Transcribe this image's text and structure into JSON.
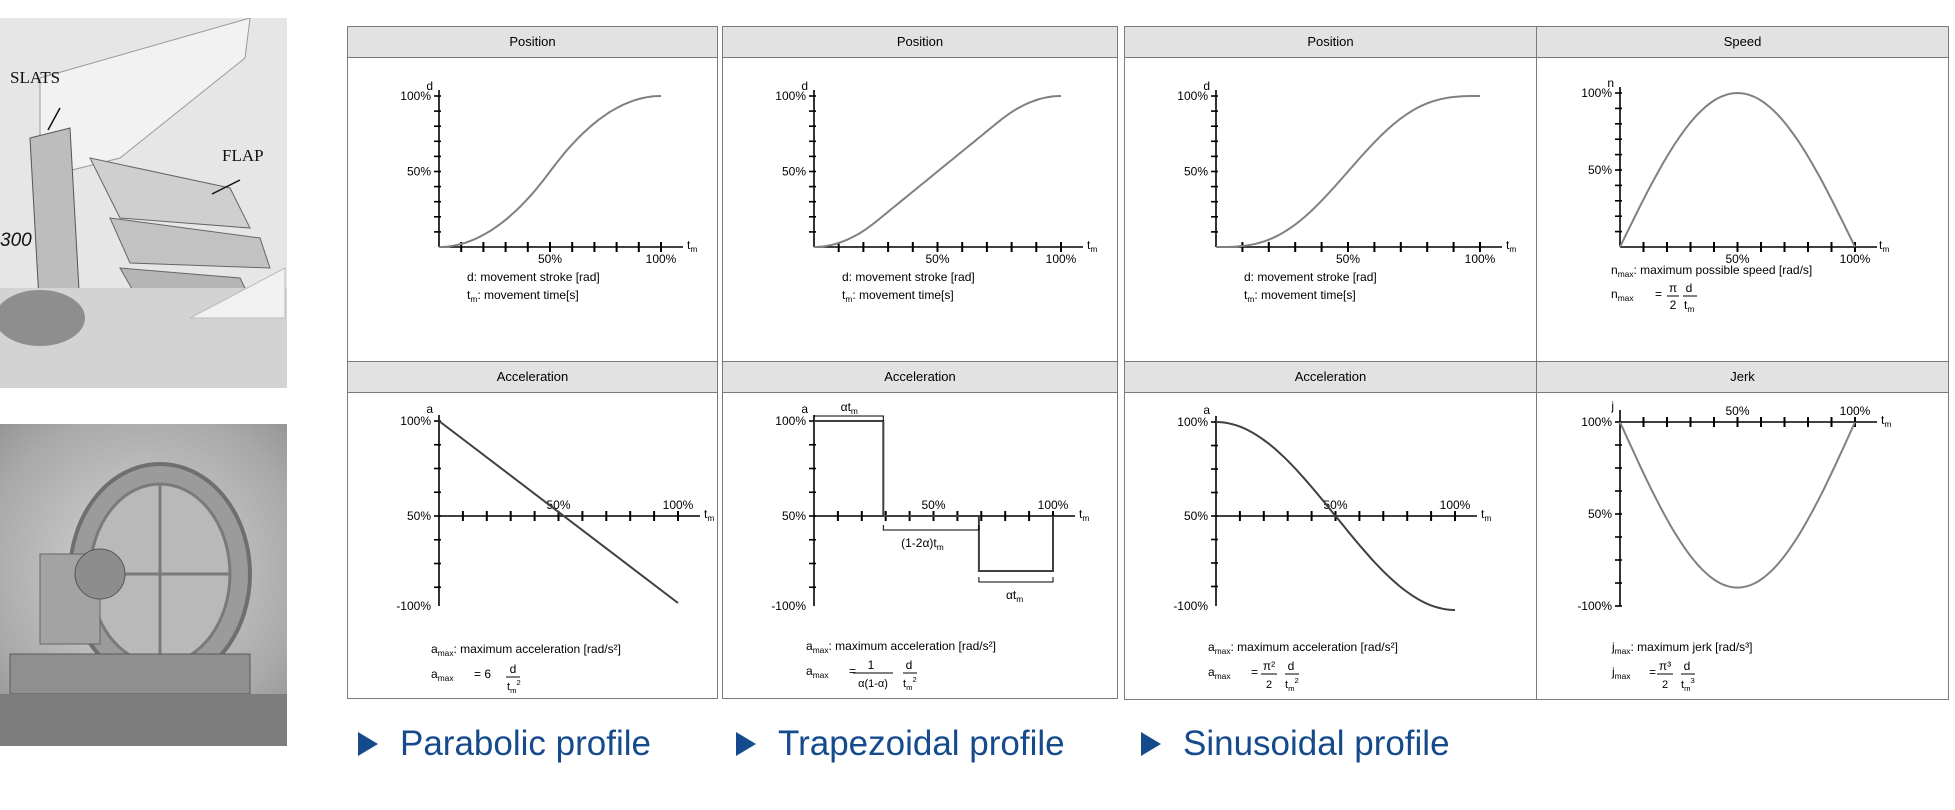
{
  "photos": {
    "wing": {
      "label_slats": "SLATS",
      "label_flap": "FLAP",
      "label_a": "300"
    },
    "gear": {}
  },
  "panels": {
    "pos1": {
      "title": "Position",
      "ylabel": "d",
      "xlabel_t": "t",
      "xlabel_sub": "m",
      "y_top": "100%",
      "y_mid": "50%",
      "x_mid": "50%",
      "x_end": "100%",
      "note1_a": "d: movement stroke [rad]",
      "note2_t": "t",
      "note2_sub": "m",
      "note2_rest": ": movement time[s]"
    },
    "pos2": {
      "title": "Position",
      "ylabel": "d",
      "xlabel_t": "t",
      "xlabel_sub": "m",
      "y_top": "100%",
      "y_mid": "50%",
      "x_mid": "50%",
      "x_end": "100%",
      "note1_a": "d: movement stroke [rad]",
      "note2_t": "t",
      "note2_sub": "m",
      "note2_rest": ": movement time[s]"
    },
    "pos3": {
      "title": "Position",
      "ylabel": "d",
      "xlabel_t": "t",
      "xlabel_sub": "m",
      "y_top": "100%",
      "y_mid": "50%",
      "x_mid": "50%",
      "x_end": "100%",
      "note1_a": "d: movement stroke [rad]",
      "note2_t": "t",
      "note2_sub": "m",
      "note2_rest": ": movement time[s]"
    },
    "speed": {
      "title": "Speed",
      "ylabel": "n",
      "xlabel_t": "t",
      "xlabel_sub": "m",
      "y_top": "100%",
      "y_mid": "50%",
      "x_mid": "50%",
      "x_end": "100%",
      "note1_n": "n",
      "note1_sub": "max",
      "note1_rest": ":  maximum possible speed [rad/s]",
      "f_lhs": "n",
      "f_lhs_sub": "max",
      "f_eq": "=",
      "f_num": "π",
      "f_den": "2",
      "f_num2": "d",
      "f_den2": "t",
      "f_den2_sub": "m"
    },
    "acc1": {
      "title": "Acceleration",
      "ylabel": "a",
      "xlabel_t": "t",
      "xlabel_sub": "m",
      "y_top": "100%",
      "y_mid": "50%",
      "y_bot": "-100%",
      "x_mid": "50%",
      "x_end": "100%",
      "note1_a": "a",
      "note1_sub": "max",
      "note1_rest": ":  maximum acceleration [rad/s²]",
      "f_lhs": "a",
      "f_lhs_sub": "max",
      "f_eq": "= 6",
      "f_num2": "d",
      "f_den2": "t",
      "f_den2_sub": "m",
      "f_den2_sup": "2"
    },
    "acc2": {
      "title": "Acceleration",
      "ylabel": "a",
      "xlabel_t": "t",
      "xlabel_sub": "m",
      "y_top": "100%",
      "y_mid": "50%",
      "y_bot": "-100%",
      "x_mid": "50%",
      "x_end": "100%",
      "brace_top": "αt",
      "brace_top_sub": "m",
      "brace_mid": "(1-2α)t",
      "brace_mid_sub": "m",
      "brace_bot": "αt",
      "brace_bot_sub": "m",
      "note1_a": "a",
      "note1_sub": "max",
      "note1_rest": ":  maximum acceleration [rad/s²]",
      "f_lhs": "a",
      "f_lhs_sub": "max",
      "f_eq": "=",
      "f_num": "1",
      "f_den": "α(1-α)",
      "f_num2": "d",
      "f_den2": "t",
      "f_den2_sub": "m",
      "f_den2_sup": "2"
    },
    "acc3": {
      "title": "Acceleration",
      "ylabel": "a",
      "xlabel_t": "t",
      "xlabel_sub": "m",
      "y_top": "100%",
      "y_mid": "50%",
      "y_bot": "-100%",
      "x_mid": "50%",
      "x_end": "100%",
      "note1_a": "a",
      "note1_sub": "max",
      "note1_rest": ":  maximum acceleration [rad/s²]",
      "f_lhs": "a",
      "f_lhs_sub": "max",
      "f_eq": "=",
      "f_num": "π²",
      "f_den": "2",
      "f_num2": "d",
      "f_den2": "t",
      "f_den2_sub": "m",
      "f_den2_sup": "2"
    },
    "jerk": {
      "title": "Jerk",
      "ylabel": "j",
      "xlabel_t": "t",
      "xlabel_sub": "m",
      "y_top": "100%",
      "y_mid": "50%",
      "y_bot": "-100%",
      "x_mid": "50%",
      "x_end": "100%",
      "note1_a": "j",
      "note1_sub": "max",
      "note1_rest": ":  maximum jerk [rad/s³]",
      "f_lhs": "j",
      "f_lhs_sub": "max",
      "f_eq": "=",
      "f_num": "π³",
      "f_den": "2",
      "f_num2": "d",
      "f_den2": "t",
      "f_den2_sub": "m",
      "f_den2_sup": "3"
    }
  },
  "captions": {
    "parabolic": "Parabolic profile",
    "trapezoidal": "Trapezoidal profile",
    "sinusoidal": "Sinusoidal profile"
  },
  "colors": {
    "curve": "#808080",
    "axis": "#000000",
    "caption": "#154a8c",
    "header_bg": "#e2e2e2"
  }
}
